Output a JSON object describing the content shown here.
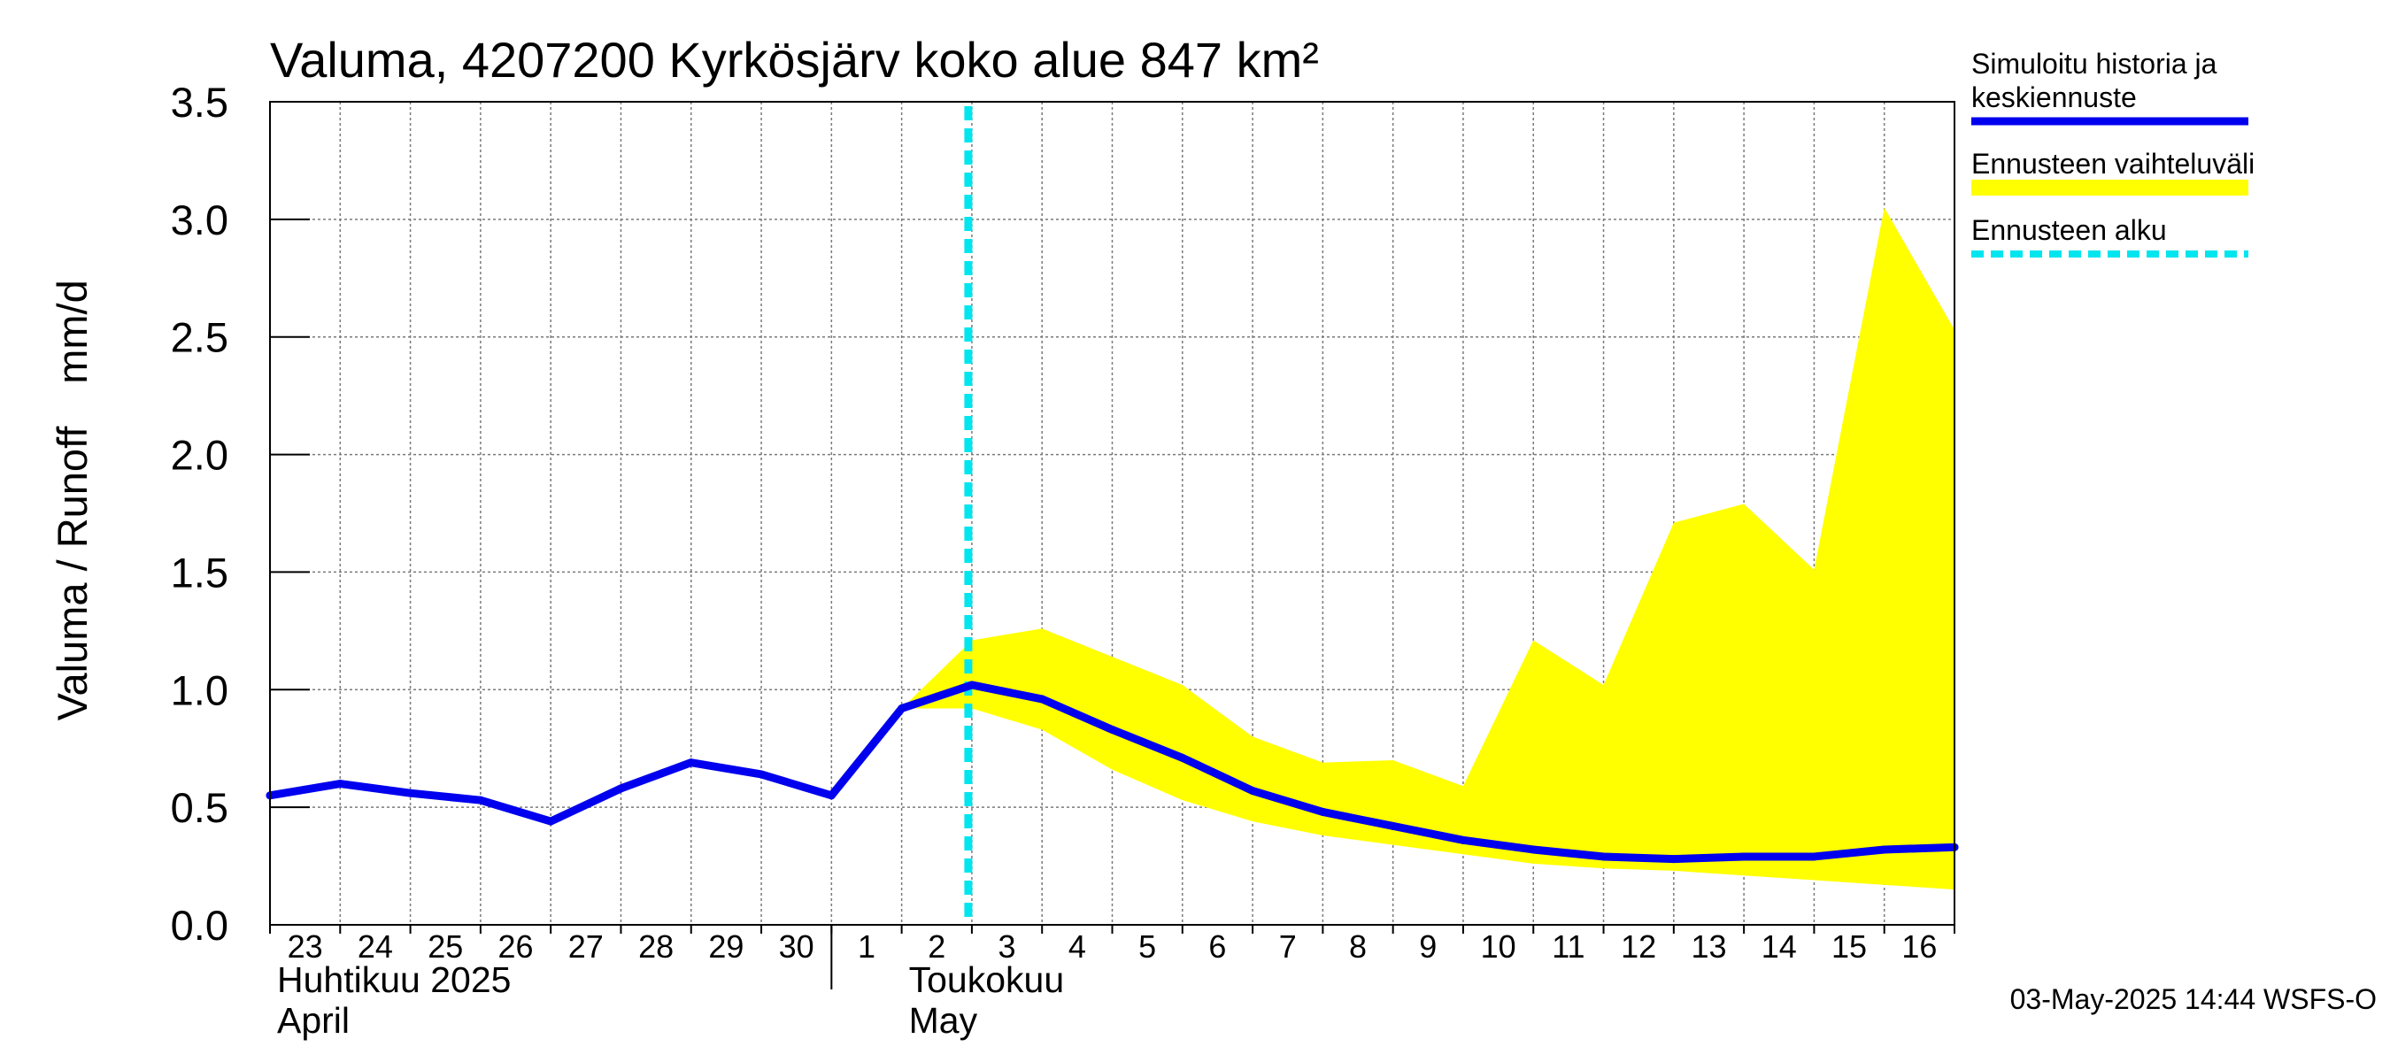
{
  "chart_data": {
    "type": "line",
    "title": "Valuma, 4207200 Kyrkösjärv koko alue 847 km²",
    "ylabel_fi": "Valuma / Runoff",
    "ylabel_unit": "mm/d",
    "ylim": [
      0.0,
      3.5
    ],
    "yticks": [
      "0.0",
      "0.5",
      "1.0",
      "1.5",
      "2.0",
      "2.5",
      "3.0",
      "3.5"
    ],
    "x_days": [
      "23",
      "24",
      "25",
      "26",
      "27",
      "28",
      "29",
      "30",
      "1",
      "2",
      "3",
      "4",
      "5",
      "6",
      "7",
      "8",
      "9",
      "10",
      "11",
      "12",
      "13",
      "14",
      "15",
      "16"
    ],
    "x_dates": [
      "2025-04-23",
      "2025-04-24",
      "2025-04-25",
      "2025-04-26",
      "2025-04-27",
      "2025-04-28",
      "2025-04-29",
      "2025-04-30",
      "2025-05-01",
      "2025-05-02",
      "2025-05-03",
      "2025-05-04",
      "2025-05-05",
      "2025-05-06",
      "2025-05-07",
      "2025-05-08",
      "2025-05-09",
      "2025-05-10",
      "2025-05-11",
      "2025-05-12",
      "2025-05-13",
      "2025-05-14",
      "2025-05-15",
      "2025-05-16",
      "2025-05-17"
    ],
    "months": [
      {
        "fi": "Huhtikuu  2025",
        "en": "April",
        "start_date": "2025-04-23"
      },
      {
        "fi": "Toukokuu",
        "en": "May",
        "start_date": "2025-05-01"
      }
    ],
    "forecast_start": "2025-05-03",
    "series": [
      {
        "name": "Simuloitu historia ja keskiennuste",
        "color": "#0000ee",
        "x": [
          "2025-04-23",
          "2025-04-24",
          "2025-04-25",
          "2025-04-26",
          "2025-04-27",
          "2025-04-28",
          "2025-04-29",
          "2025-04-30",
          "2025-05-01",
          "2025-05-02",
          "2025-05-03",
          "2025-05-04",
          "2025-05-05",
          "2025-05-06",
          "2025-05-07",
          "2025-05-08",
          "2025-05-09",
          "2025-05-10",
          "2025-05-11",
          "2025-05-12",
          "2025-05-13",
          "2025-05-14",
          "2025-05-15",
          "2025-05-16",
          "2025-05-17"
        ],
        "values": [
          0.55,
          0.6,
          0.56,
          0.53,
          0.44,
          0.58,
          0.69,
          0.64,
          0.55,
          0.92,
          1.02,
          0.96,
          0.83,
          0.71,
          0.57,
          0.48,
          0.42,
          0.36,
          0.32,
          0.29,
          0.28,
          0.29,
          0.29,
          0.32,
          0.33
        ]
      },
      {
        "name": "Ennusteen vaihteluväli",
        "color": "#ffff00",
        "x": [
          "2025-05-02",
          "2025-05-03",
          "2025-05-04",
          "2025-05-05",
          "2025-05-06",
          "2025-05-07",
          "2025-05-08",
          "2025-05-09",
          "2025-05-10",
          "2025-05-11",
          "2025-05-12",
          "2025-05-13",
          "2025-05-14",
          "2025-05-15",
          "2025-05-16",
          "2025-05-17"
        ],
        "upper": [
          0.92,
          1.21,
          1.26,
          1.14,
          1.02,
          0.8,
          0.69,
          0.7,
          0.59,
          1.21,
          1.02,
          1.71,
          1.79,
          1.51,
          3.05,
          2.53
        ],
        "lower": [
          0.92,
          0.92,
          0.83,
          0.66,
          0.53,
          0.44,
          0.38,
          0.34,
          0.3,
          0.26,
          0.24,
          0.23,
          0.21,
          0.19,
          0.17,
          0.15
        ]
      }
    ],
    "legend": [
      {
        "label_lines": [
          "Simuloitu historia ja",
          "keskiennuste"
        ],
        "color": "#0000ee",
        "style": "solid"
      },
      {
        "label_lines": [
          "Ennusteen vaihteluväli"
        ],
        "color": "#ffff00",
        "style": "solid"
      },
      {
        "label_lines": [
          "Ennusteen alku"
        ],
        "color": "#00e5ee",
        "style": "dashed"
      }
    ],
    "legend_position": "right",
    "grid": true,
    "timestamp": "03-May-2025 14:44 WSFS-O"
  }
}
